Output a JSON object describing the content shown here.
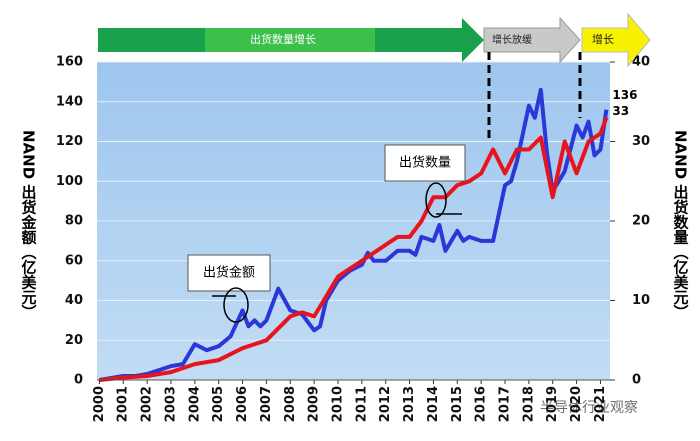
{
  "chart_data": {
    "type": "line",
    "stages": [
      "出货数量增长",
      "增长放缓",
      "增长"
    ],
    "annotations": [
      "出货金额",
      "出货数量"
    ],
    "watermark": "半导体行业观察",
    "y_label": "NAND 出货金额（亿美元）",
    "y2_label": "NAND 出货数量（亿美元）",
    "xlim": [
      1999.9,
      2021.4
    ],
    "xticks": [
      2000,
      2001,
      2002,
      2003,
      2004,
      2005,
      2006,
      2007,
      2008,
      2009,
      2010,
      2011,
      2012,
      2013,
      2014,
      2015,
      2016,
      2017,
      2018,
      2019,
      2020,
      2021
    ],
    "ylim": [
      0,
      160
    ],
    "yticks": [
      0,
      20,
      40,
      60,
      80,
      100,
      120,
      140,
      160
    ],
    "y2lim": [
      0,
      40
    ],
    "y2ticks": [
      0,
      10,
      20,
      30,
      40
    ],
    "grid": true,
    "series": [
      {
        "name": "出货金额",
        "color": "#2b37d8",
        "x": [
          2000,
          2000.5,
          2001,
          2001.5,
          2002,
          2002.5,
          2003,
          2003.5,
          2004,
          2004.5,
          2005,
          2005.5,
          2006,
          2006.25,
          2006.5,
          2006.75,
          2007,
          2007.5,
          2008,
          2008.5,
          2009,
          2009.25,
          2009.5,
          2010,
          2010.5,
          2011,
          2011.25,
          2011.5,
          2012,
          2012.5,
          2013,
          2013.25,
          2013.5,
          2014,
          2014.25,
          2014.5,
          2015,
          2015.25,
          2015.5,
          2016,
          2016.5,
          2017,
          2017.25,
          2017.5,
          2018,
          2018.25,
          2018.5,
          2018.75,
          2019,
          2019.5,
          2020,
          2020.25,
          2020.5,
          2020.75,
          2021,
          2021.25
        ],
        "values": [
          0,
          1,
          2,
          2,
          3,
          5,
          7,
          8,
          18,
          15,
          17,
          22,
          35,
          27,
          30,
          27,
          30,
          46,
          35,
          33,
          25,
          27,
          40,
          50,
          55,
          58,
          64,
          60,
          60,
          65,
          65,
          63,
          72,
          70,
          78,
          65,
          75,
          70,
          72,
          70,
          70,
          98,
          100,
          110,
          138,
          132,
          146,
          115,
          95,
          105,
          128,
          122,
          130,
          113,
          116,
          136
        ]
      },
      {
        "name": "出货数量",
        "color": "#e8141c",
        "axis": "y2",
        "x": [
          2000,
          2001,
          2002,
          2003,
          2004,
          2005,
          2006,
          2007,
          2008,
          2008.5,
          2009,
          2009.5,
          2010,
          2010.5,
          2011,
          2011.5,
          2012,
          2012.5,
          2013,
          2013.5,
          2014,
          2014.5,
          2015,
          2015.5,
          2016,
          2016.5,
          2017,
          2017.5,
          2018,
          2018.5,
          2019,
          2019.5,
          2020,
          2020.5,
          2021,
          2021.25
        ],
        "values": [
          0,
          0.3,
          0.5,
          1,
          2,
          2.5,
          4,
          5,
          8,
          8.5,
          8,
          10.5,
          13,
          14,
          15,
          16,
          17,
          18,
          18,
          20,
          23,
          23,
          24.5,
          25,
          26,
          29,
          26,
          29,
          29,
          30.5,
          23,
          30,
          26,
          30,
          31,
          33
        ]
      }
    ]
  }
}
